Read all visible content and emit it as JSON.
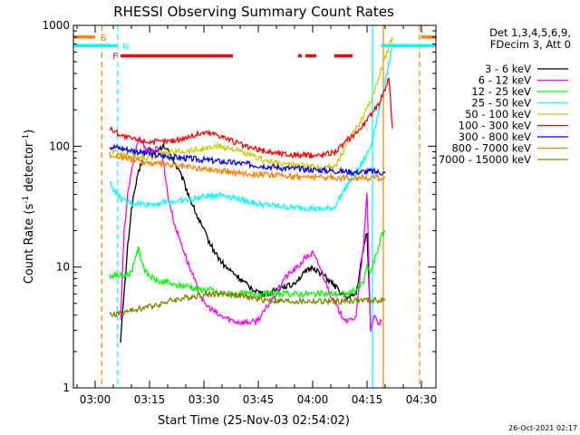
{
  "chart_data": {
    "type": "line",
    "title": "RHESSI Observing Summary Count Rates",
    "xlabel": "Start Time (25-Nov-03 02:54:02)",
    "ylabel_main": "Count Rate (s",
    "ylabel_sup1": "-1",
    "ylabel_mid": " detector",
    "ylabel_sup2": "-1",
    "ylabel_end": ")",
    "yscale": "log",
    "ylim": [
      1,
      1000
    ],
    "xlim_minutes": [
      -6,
      94
    ],
    "x_ticks": [
      {
        "label": "03:00",
        "value": 0
      },
      {
        "label": "03:15",
        "value": 15
      },
      {
        "label": "03:30",
        "value": 30
      },
      {
        "label": "03:45",
        "value": 45
      },
      {
        "label": "04:00",
        "value": 60
      },
      {
        "label": "04:15",
        "value": 75
      },
      {
        "label": "04:30",
        "value": 90
      }
    ],
    "y_ticks": [
      {
        "label": "1",
        "value": 1
      },
      {
        "label": "10",
        "value": 10
      },
      {
        "label": "100",
        "value": 100
      },
      {
        "label": "1000",
        "value": 1000
      }
    ],
    "legend_header": [
      "Det 1,3,4,5,6,9,",
      "FDecim 3, Att 0"
    ],
    "legend_position": "right",
    "series": [
      {
        "name": "3 - 6 keV",
        "color": "#000000",
        "x": [
          7,
          8,
          9,
          10,
          11,
          12,
          13,
          14,
          15,
          16,
          17,
          18,
          19,
          20,
          21,
          22,
          24,
          26,
          28,
          30,
          32,
          34,
          36,
          38,
          40,
          42,
          44,
          46,
          48,
          50,
          52,
          54,
          56,
          58,
          60,
          62,
          64,
          66,
          68,
          70,
          72,
          74,
          75,
          76
        ],
        "y": [
          2.5,
          6,
          15,
          30,
          45,
          60,
          78,
          90,
          95,
          90,
          88,
          95,
          100,
          92,
          85,
          72,
          55,
          38,
          27,
          20,
          15,
          12,
          10,
          9,
          8,
          7,
          6.5,
          6,
          6,
          6.5,
          7,
          7,
          8,
          9,
          10,
          9,
          8,
          7,
          6,
          5.5,
          6,
          14,
          20,
          3
        ]
      },
      {
        "name": "6 - 12 keV",
        "color": "#ff00ff",
        "x": [
          7,
          8,
          9,
          10,
          11,
          12,
          13,
          14,
          15,
          16,
          17,
          18,
          19,
          20,
          22,
          24,
          26,
          28,
          30,
          32,
          34,
          36,
          38,
          40,
          42,
          44,
          46,
          48,
          50,
          52,
          54,
          56,
          58,
          60,
          62,
          64,
          66,
          68,
          70,
          72,
          74,
          75,
          76,
          77,
          78,
          79
        ],
        "y": [
          3.5,
          20,
          40,
          60,
          90,
          115,
          110,
          95,
          90,
          92,
          95,
          90,
          70,
          40,
          22,
          15,
          10,
          7,
          5,
          4.5,
          4,
          3.8,
          3.6,
          3.5,
          3.5,
          3.5,
          4,
          5,
          6,
          8,
          9,
          10,
          12,
          13,
          10,
          7,
          5,
          4,
          3.5,
          4,
          15,
          40,
          3,
          4,
          3.5,
          3.5
        ]
      },
      {
        "name": "12 - 25 keV",
        "color": "#00ff00",
        "x": [
          4,
          6,
          8,
          10,
          11,
          12,
          13,
          14,
          16,
          18,
          20,
          22,
          24,
          26,
          28,
          30,
          32,
          34,
          36,
          38,
          40,
          42,
          44,
          46,
          48,
          50,
          52,
          54,
          56,
          58,
          60,
          62,
          64,
          66,
          68,
          70,
          72,
          74,
          75,
          76,
          78,
          79,
          80
        ],
        "y": [
          8.5,
          8.5,
          8.5,
          9,
          12,
          14,
          11,
          9,
          8,
          7.5,
          7.5,
          7,
          7,
          7,
          6.5,
          6.5,
          6.5,
          6,
          6,
          6,
          6,
          6,
          6,
          6,
          6,
          6,
          6,
          6,
          6,
          6,
          6,
          6,
          6,
          6,
          6,
          6,
          6.5,
          7.5,
          10,
          9,
          14,
          18,
          20
        ]
      },
      {
        "name": "25 - 50 keV",
        "color": "#00ffff",
        "x": [
          4,
          6,
          8,
          10,
          14,
          18,
          22,
          26,
          30,
          34,
          38,
          42,
          46,
          50,
          54,
          58,
          62,
          66,
          68,
          70,
          72,
          74,
          76,
          78,
          80,
          82
        ],
        "y": [
          50,
          40,
          35,
          34,
          33,
          34,
          35,
          36,
          38,
          40,
          38,
          35,
          33,
          32,
          31,
          31,
          30,
          31,
          40,
          50,
          60,
          75,
          100,
          180,
          350,
          650
        ]
      },
      {
        "name": "50 - 100 keV",
        "color": "#cccc00",
        "x": [
          4,
          6,
          8,
          10,
          14,
          18,
          22,
          26,
          30,
          34,
          38,
          42,
          46,
          50,
          54,
          58,
          62,
          66,
          68,
          70,
          72,
          74,
          76,
          78,
          80,
          82
        ],
        "y": [
          95,
          88,
          85,
          82,
          80,
          85,
          90,
          92,
          95,
          100,
          95,
          85,
          78,
          72,
          70,
          68,
          67,
          68,
          85,
          110,
          140,
          180,
          240,
          350,
          550,
          800
        ]
      },
      {
        "name": "100 - 300 keV",
        "color": "#ff0000",
        "x": [
          4,
          6,
          8,
          10,
          14,
          18,
          22,
          26,
          30,
          34,
          38,
          42,
          46,
          50,
          54,
          58,
          62,
          66,
          68,
          70,
          72,
          74,
          76,
          78,
          80,
          81,
          82
        ],
        "y": [
          140,
          130,
          120,
          115,
          110,
          108,
          112,
          120,
          130,
          125,
          110,
          98,
          92,
          88,
          85,
          84,
          84,
          90,
          100,
          115,
          130,
          150,
          180,
          220,
          300,
          380,
          140
        ]
      },
      {
        "name": "300 - 800 keV",
        "color": "#0000ff",
        "x": [
          4,
          8,
          12,
          16,
          20,
          24,
          28,
          32,
          36,
          40,
          44,
          48,
          52,
          56,
          60,
          64,
          68,
          72,
          76,
          80
        ],
        "y": [
          100,
          95,
          90,
          85,
          82,
          80,
          78,
          76,
          74,
          72,
          70,
          68,
          66,
          65,
          64,
          63,
          62,
          61,
          62,
          60
        ]
      },
      {
        "name": "800 - 7000 keV",
        "color": "#ff8000",
        "x": [
          4,
          8,
          12,
          16,
          20,
          24,
          28,
          32,
          36,
          40,
          44,
          48,
          52,
          56,
          60,
          64,
          68,
          72,
          76,
          80
        ],
        "y": [
          85,
          80,
          75,
          72,
          70,
          68,
          66,
          64,
          62,
          60,
          59,
          58,
          57,
          56,
          56,
          55,
          55,
          55,
          55,
          54
        ]
      },
      {
        "name": "7000 - 15000 keV",
        "color": "#808000",
        "x": [
          4,
          8,
          12,
          16,
          20,
          24,
          28,
          32,
          36,
          40,
          44,
          48,
          52,
          56,
          60,
          64,
          68,
          72,
          76,
          80
        ],
        "y": [
          4,
          4.2,
          4.5,
          4.8,
          5.2,
          5.5,
          5.8,
          6,
          6,
          5.8,
          5.5,
          5.3,
          5.2,
          5.2,
          5.2,
          5.2,
          5.2,
          5.3,
          5.3,
          5.3
        ]
      }
    ],
    "flags": [
      {
        "label": "S",
        "color": "#ff8000",
        "y": 800,
        "segments": [
          [
            -6,
            0
          ],
          [
            90,
            94
          ]
        ]
      },
      {
        "label": "N",
        "color": "#00ffff",
        "y": 680,
        "segments": [
          [
            -6,
            6
          ],
          [
            79,
            94
          ]
        ]
      },
      {
        "label": "F",
        "color": "#ff0000",
        "y": 560,
        "segments": [
          [
            7,
            38
          ],
          [
            56,
            57
          ],
          [
            58,
            61
          ],
          [
            66,
            71
          ]
        ]
      }
    ],
    "vertical_lines": [
      {
        "x": 1.8,
        "color": "#ff8000",
        "style": "dashed"
      },
      {
        "x": 6.2,
        "color": "#00ffff",
        "style": "dashed"
      },
      {
        "x": 76.5,
        "color": "#00ffff",
        "style": "solid"
      },
      {
        "x": 79.5,
        "color": "#ff8000",
        "style": "solid"
      },
      {
        "x": 89.5,
        "color": "#ff8000",
        "style": "dashed"
      },
      {
        "x": -6,
        "color": "#00ffff",
        "style": "solid"
      }
    ],
    "timestamp": "26-Oct-2021 02:17"
  }
}
